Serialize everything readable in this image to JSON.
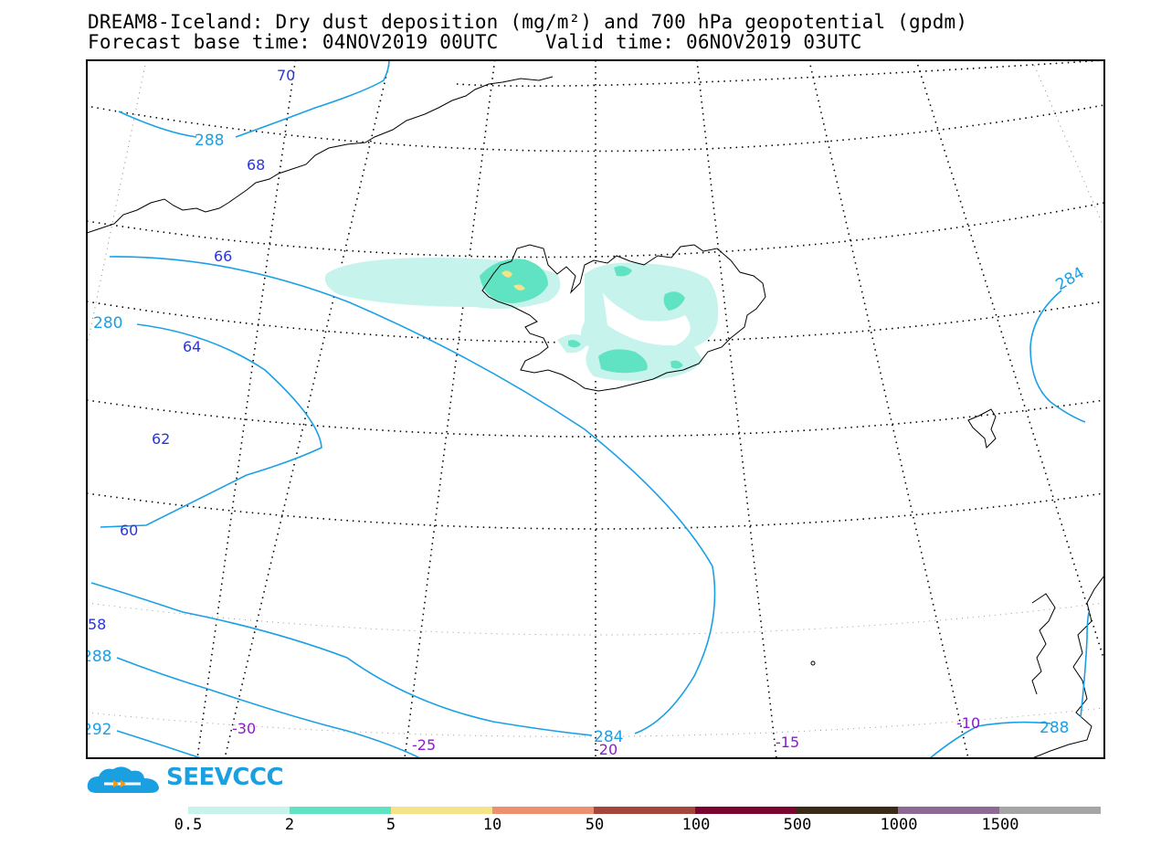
{
  "title": {
    "line1": "DREAM8-Iceland: Dry dust deposition (mg/m²) and 700 hPa geopotential (gpdm)",
    "line2": "Forecast base time: 04NOV2019 00UTC    Valid time: 06NOV2019 03UTC"
  },
  "latitude_labels": [
    "70",
    "68",
    "66",
    "64",
    "62",
    "60",
    "58"
  ],
  "longitude_labels": [
    "-30",
    "-25",
    "-20",
    "-15",
    "-10"
  ],
  "contour_labels": [
    "288",
    "280",
    "284",
    "284",
    "288",
    "288",
    "292"
  ],
  "logo": {
    "text": "SEEVCCC",
    "icon": "cloud-logo-icon"
  },
  "colorbar": {
    "colors": [
      "#c6f3ec",
      "#5fe3c3",
      "#f5e38a",
      "#ec9070",
      "#a3473c",
      "#7a0630",
      "#3a2a18",
      "#8c6a94",
      "#a5a5a5"
    ],
    "labels": [
      "0.5",
      "2",
      "5",
      "10",
      "50",
      "100",
      "500",
      "1000",
      "1500"
    ]
  },
  "colors": {
    "contour": "#1aa0e6",
    "lat_label": "#2a35e0",
    "lon_label": "#8a1ad0",
    "coast": "#000000"
  }
}
